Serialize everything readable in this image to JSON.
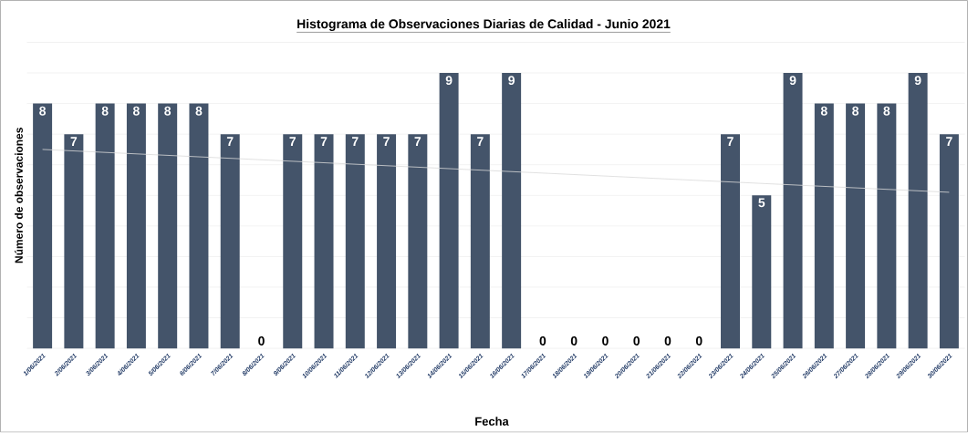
{
  "chart_data": {
    "type": "bar",
    "title": "Histograma de Observaciones Diarias de Calidad - Junio 2021",
    "xlabel": "Fecha",
    "ylabel": "Número de observaciones",
    "categories": [
      "1/06/2021",
      "2/06/2021",
      "3/06/2021",
      "4/06/2021",
      "5/06/2021",
      "6/06/2021",
      "7/06/2021",
      "8/06/2021",
      "9/06/2021",
      "10/06/2021",
      "11/06/2021",
      "12/06/2021",
      "13/06/2021",
      "14/06/2021",
      "15/06/2021",
      "16/06/2021",
      "17/06/2021",
      "18/06/2021",
      "19/06/2021",
      "20/06/2021",
      "21/06/2021",
      "22/06/2021",
      "23/06/2021",
      "24/06/2021",
      "25/06/2021",
      "26/06/2021",
      "27/06/2021",
      "28/06/2021",
      "29/06/2021",
      "30/06/2021"
    ],
    "series": [
      {
        "color": "#44546a",
        "values": [
          8,
          7,
          8,
          8,
          8,
          8,
          7,
          0,
          7,
          7,
          7,
          7,
          7,
          9,
          7,
          9,
          0,
          0,
          0,
          0,
          0,
          0,
          7,
          5,
          9,
          8,
          8,
          8,
          9,
          7
        ],
        "value_labels": [
          "8",
          "7",
          "8",
          "8",
          "8",
          "8",
          "7",
          "0",
          "7",
          "7",
          "7",
          "7",
          "7",
          "9",
          "7",
          "9",
          "0",
          "0",
          "0",
          "0",
          "0",
          "0",
          "7",
          "5",
          "9",
          "8",
          "8",
          "8",
          "9",
          "7"
        ]
      },
      {
        "type": "line",
        "color": "#d9d9d9",
        "x": [
          "1/06/2021",
          "30/06/2021"
        ],
        "values": [
          6.5,
          5.1
        ]
      }
    ],
    "ylim": [
      0,
      10
    ],
    "yticks": [
      {
        "value": 0,
        "label": null
      },
      {
        "value": 1,
        "label": null
      },
      {
        "value": 2,
        "label": null
      },
      {
        "value": 3,
        "label": null
      },
      {
        "value": 4,
        "label": null
      },
      {
        "value": 5,
        "label": null
      },
      {
        "value": 6,
        "label": null
      },
      {
        "value": 7,
        "label": null
      },
      {
        "value": 8,
        "label": null
      },
      {
        "value": 9,
        "label": null
      },
      {
        "value": 10,
        "label": null
      }
    ],
    "grid": "y",
    "tick_labels": "x"
  }
}
